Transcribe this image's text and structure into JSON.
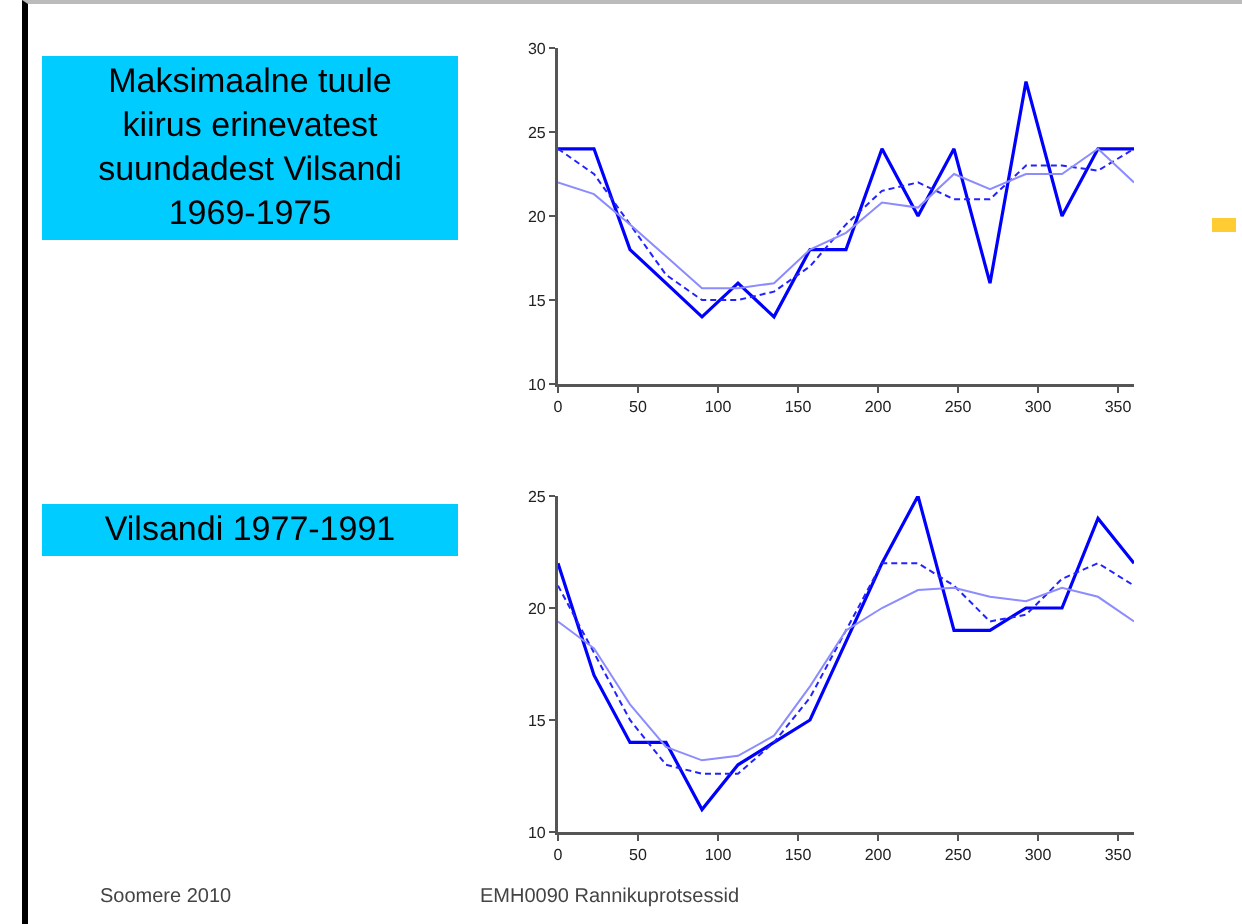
{
  "chart_data": [
    {
      "type": "line",
      "title": "Maksimaalne tuule kiirus erinevatest suundadest Vilsandi 1969-1975",
      "x": [
        0,
        22.5,
        45,
        67.5,
        90,
        112.5,
        135,
        157.5,
        180,
        202.5,
        225,
        247.5,
        270,
        292.5,
        315,
        337.5,
        360
      ],
      "series": [
        {
          "color": "#0000ff",
          "line_style": "solid",
          "values": [
            24,
            24,
            18,
            16,
            14,
            16,
            14,
            18,
            18,
            24,
            20,
            24,
            16,
            28,
            20,
            24,
            24
          ]
        },
        {
          "color": "#2222ff",
          "line_style": "dashed",
          "values": [
            24,
            22.5,
            19.5,
            16.5,
            15,
            15,
            15.5,
            17,
            19.5,
            21.5,
            22,
            21,
            21,
            23,
            23,
            22.7,
            24
          ]
        },
        {
          "color": "#8c8cff",
          "line_style": "solid",
          "values": [
            22,
            21.3,
            19.5,
            17.6,
            15.7,
            15.7,
            16,
            18,
            19,
            20.8,
            20.5,
            22.5,
            21.6,
            22.5,
            22.5,
            24,
            22
          ]
        }
      ],
      "xlim": [
        0,
        360
      ],
      "xticks": [
        0,
        50,
        100,
        150,
        200,
        250,
        300,
        350
      ],
      "ylim": [
        10,
        30
      ],
      "yticks": [
        10,
        15,
        20,
        25,
        30
      ],
      "grid": false
    },
    {
      "type": "line",
      "title": "Vilsandi 1977-1991",
      "x": [
        0,
        22.5,
        45,
        67.5,
        90,
        112.5,
        135,
        157.5,
        180,
        202.5,
        225,
        247.5,
        270,
        292.5,
        315,
        337.5,
        360
      ],
      "series": [
        {
          "color": "#0000ff",
          "line_style": "solid",
          "values": [
            22,
            17,
            14,
            14,
            11,
            13,
            14,
            15,
            18.5,
            22,
            25,
            19,
            19,
            20,
            20,
            24,
            22
          ]
        },
        {
          "color": "#2222ff",
          "line_style": "dashed",
          "values": [
            21,
            18,
            15,
            13,
            12.6,
            12.6,
            14,
            16,
            19,
            22,
            22,
            21,
            19.4,
            19.7,
            21.3,
            22,
            21
          ]
        },
        {
          "color": "#8c8cff",
          "line_style": "solid",
          "values": [
            19.4,
            18.2,
            15.7,
            13.8,
            13.2,
            13.4,
            14.3,
            16.5,
            19,
            20,
            20.8,
            20.9,
            20.5,
            20.3,
            20.9,
            20.5,
            19.4
          ]
        }
      ],
      "xlim": [
        0,
        360
      ],
      "xticks": [
        0,
        50,
        100,
        150,
        200,
        250,
        300,
        350
      ],
      "ylim": [
        10,
        25
      ],
      "yticks": [
        10,
        15,
        20,
        25
      ],
      "grid": false,
      "annotations": [
        "Soomere 2010",
        "EMH0090 Rannikuprotsessid"
      ]
    }
  ]
}
